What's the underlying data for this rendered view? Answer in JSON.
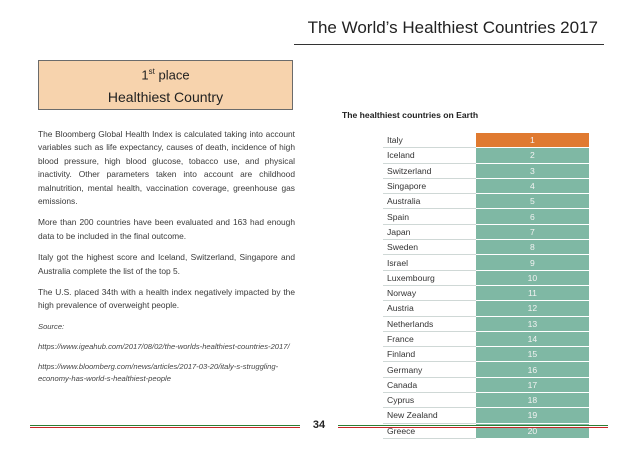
{
  "header": {
    "title": "The World’s Healthiest Countries 2017"
  },
  "place_box": {
    "ordinal_number": "1",
    "ordinal_suffix": "st",
    "place_word": "place",
    "subtitle": "Healthiest Country"
  },
  "body": {
    "paragraphs": [
      "The Bloomberg Global Health Index is calculated taking into account variables such as life expectancy, causes of death, incidence of high blood pressure, high blood glucose, tobacco use, and physical inactivity. Other parameters taken into account are childhood malnutrition, mental health, vaccination coverage, greenhouse gas emissions.",
      "More than 200 countries have been evaluated and 163 had enough data to be included in the final outcome.",
      "Italy got the highest score and Iceland, Switzerland, Singapore and Australia complete the list of the top 5.",
      "The U.S. placed 34th with a health index negatively impacted by the high prevalence of overweight people."
    ],
    "source_label": "Source:",
    "sources": [
      "https://www.igeahub.com/2017/08/02/the-worlds-healthiest-countries-2017/",
      "https://www.bloomberg.com/news/articles/2017-03-20/italy-s-struggling-economy-has-world-s-healthiest-people"
    ]
  },
  "table": {
    "title": "The healthiest countries on Earth",
    "rows": [
      {
        "country": "Italy",
        "rank": "1"
      },
      {
        "country": "Iceland",
        "rank": "2"
      },
      {
        "country": "Switzerland",
        "rank": "3"
      },
      {
        "country": "Singapore",
        "rank": "4"
      },
      {
        "country": "Australia",
        "rank": "5"
      },
      {
        "country": "Spain",
        "rank": "6"
      },
      {
        "country": "Japan",
        "rank": "7"
      },
      {
        "country": "Sweden",
        "rank": "8"
      },
      {
        "country": "Israel",
        "rank": "9"
      },
      {
        "country": "Luxembourg",
        "rank": "10"
      },
      {
        "country": "Norway",
        "rank": "11"
      },
      {
        "country": "Austria",
        "rank": "12"
      },
      {
        "country": "Netherlands",
        "rank": "13"
      },
      {
        "country": "France",
        "rank": "14"
      },
      {
        "country": "Finland",
        "rank": "15"
      },
      {
        "country": "Germany",
        "rank": "16"
      },
      {
        "country": "Canada",
        "rank": "17"
      },
      {
        "country": "Cyprus",
        "rank": "18"
      },
      {
        "country": "New Zealand",
        "rank": "19"
      },
      {
        "country": "Greece",
        "rank": "20"
      }
    ],
    "colors": {
      "first": "#e07a30",
      "rest": "#7fb8a4"
    }
  },
  "footer": {
    "page_number": "34",
    "colors": [
      "#2e7d32",
      "#ffffff",
      "#c62828"
    ]
  }
}
